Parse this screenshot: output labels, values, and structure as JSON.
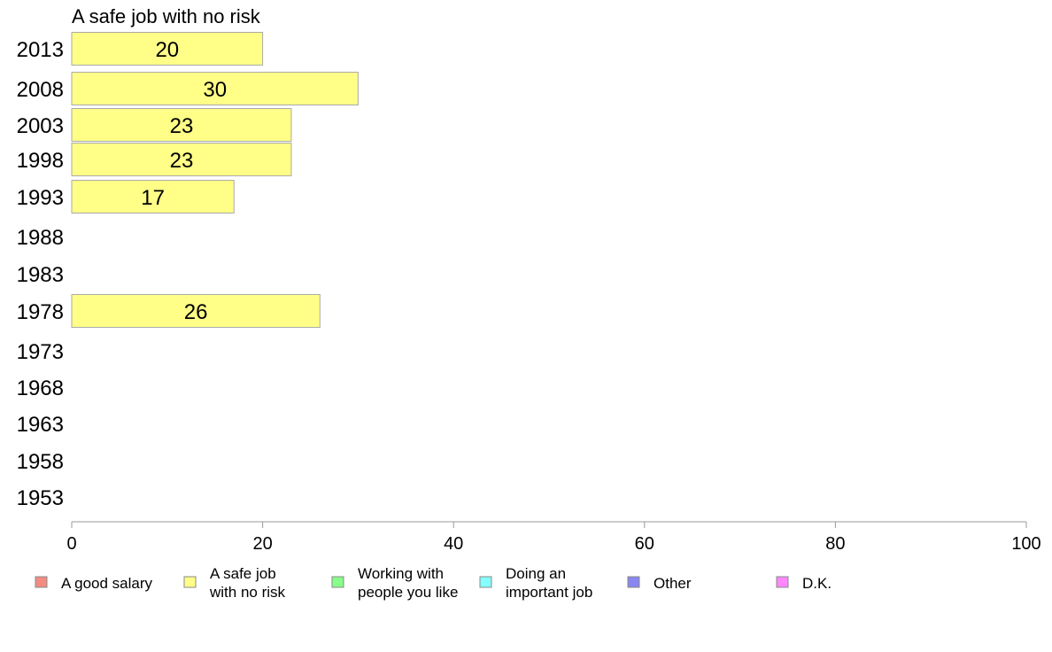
{
  "chart_data": {
    "type": "bar",
    "orientation": "horizontal",
    "title": "A safe job with no risk",
    "categories": [
      "2013",
      "2008",
      "2003",
      "1998",
      "1993",
      "1988",
      "1983",
      "1978",
      "1973",
      "1968",
      "1963",
      "1958",
      "1953"
    ],
    "series": [
      {
        "name": "A safe job with no risk",
        "values": [
          20,
          30,
          23,
          23,
          17,
          null,
          null,
          26,
          null,
          null,
          null,
          null,
          null
        ]
      }
    ],
    "value_labels": [
      "20",
      "30",
      "23",
      "23",
      "17",
      "",
      "",
      "26",
      "",
      "",
      "",
      "",
      ""
    ],
    "xlim": [
      0,
      100
    ],
    "xticks": [
      0,
      20,
      40,
      60,
      80,
      100
    ],
    "grid": false,
    "bar_color": "#ffff88",
    "bar_edge_color": "#aaaaaa",
    "axis_color": "#999999",
    "legend": {
      "placement": "bottom",
      "items": [
        {
          "lines": [
            "A good salary"
          ],
          "color": "#f28b82"
        },
        {
          "lines": [
            "A safe job",
            "with no risk"
          ],
          "color": "#ffff88"
        },
        {
          "lines": [
            "Working with",
            "people you like"
          ],
          "color": "#88ff88"
        },
        {
          "lines": [
            "Doing an",
            "important job"
          ],
          "color": "#88ffff"
        },
        {
          "lines": [
            "Other"
          ],
          "color": "#8888ee"
        },
        {
          "lines": [
            "D.K."
          ],
          "color": "#ff88ff"
        }
      ]
    }
  }
}
